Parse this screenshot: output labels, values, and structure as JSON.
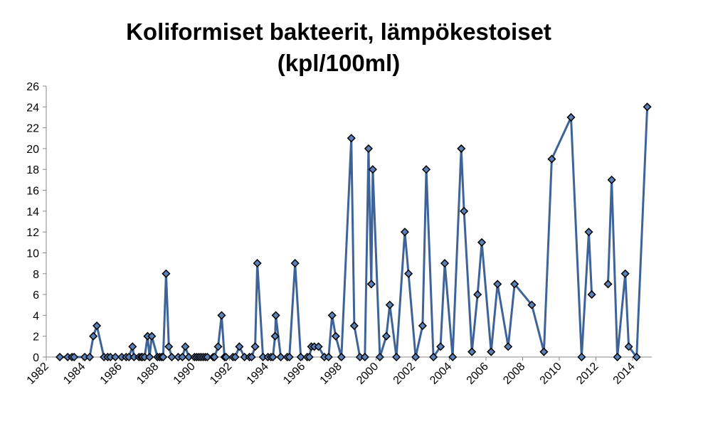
{
  "chart_data": {
    "type": "line",
    "title": [
      "Koliformiset bakteerit, lämpökestoiset",
      "(kpl/100ml)"
    ],
    "xlabel": "",
    "ylabel": "",
    "xlim": [
      1982,
      2015
    ],
    "ylim": [
      0,
      26
    ],
    "grid": false,
    "legend": "none",
    "x_ticks": [
      1982,
      1984,
      1986,
      1988,
      1990,
      1992,
      1994,
      1996,
      1998,
      2000,
      2002,
      2004,
      2006,
      2008,
      2010,
      2012,
      2014
    ],
    "y_ticks": [
      0,
      2,
      4,
      6,
      8,
      10,
      12,
      14,
      16,
      18,
      20,
      22,
      24,
      26
    ],
    "colors": {
      "line": "#3d6398",
      "marker_fill": "#5b82b8",
      "marker_edge": "#000000",
      "axis": "#888888"
    },
    "series": [
      {
        "name": "Koliformiset bakteerit",
        "points": [
          [
            1982.74,
            0
          ],
          [
            1983.17,
            0
          ],
          [
            1983.4,
            0
          ],
          [
            1983.52,
            0
          ],
          [
            1984.1,
            0
          ],
          [
            1984.37,
            0
          ],
          [
            1984.57,
            2
          ],
          [
            1984.76,
            3
          ],
          [
            1985.15,
            0
          ],
          [
            1985.35,
            0
          ],
          [
            1985.5,
            0
          ],
          [
            1985.77,
            0
          ],
          [
            1986.12,
            0
          ],
          [
            1986.36,
            0
          ],
          [
            1986.51,
            0
          ],
          [
            1986.71,
            1
          ],
          [
            1986.79,
            0
          ],
          [
            1987.06,
            0
          ],
          [
            1987.18,
            0
          ],
          [
            1987.25,
            0
          ],
          [
            1987.37,
            0
          ],
          [
            1987.53,
            2
          ],
          [
            1987.64,
            0
          ],
          [
            1987.76,
            2
          ],
          [
            1988.07,
            0
          ],
          [
            1988.19,
            0
          ],
          [
            1988.3,
            0
          ],
          [
            1988.38,
            0
          ],
          [
            1988.54,
            8
          ],
          [
            1988.69,
            1
          ],
          [
            1988.85,
            0
          ],
          [
            1989.2,
            0
          ],
          [
            1989.43,
            0
          ],
          [
            1989.59,
            1
          ],
          [
            1989.78,
            0
          ],
          [
            1990.09,
            0
          ],
          [
            1990.21,
            0
          ],
          [
            1990.33,
            0
          ],
          [
            1990.44,
            0
          ],
          [
            1990.56,
            0
          ],
          [
            1990.68,
            0
          ],
          [
            1990.79,
            0
          ],
          [
            1991.11,
            0
          ],
          [
            1991.18,
            0
          ],
          [
            1991.38,
            1
          ],
          [
            1991.57,
            4
          ],
          [
            1991.73,
            0
          ],
          [
            1991.81,
            0
          ],
          [
            1992.19,
            0
          ],
          [
            1992.31,
            0
          ],
          [
            1992.54,
            1
          ],
          [
            1992.82,
            0
          ],
          [
            1993.09,
            0
          ],
          [
            1993.21,
            0
          ],
          [
            1993.4,
            1
          ],
          [
            1993.52,
            9
          ],
          [
            1993.83,
            0
          ],
          [
            1994.1,
            0
          ],
          [
            1994.26,
            0
          ],
          [
            1994.37,
            0
          ],
          [
            1994.49,
            2
          ],
          [
            1994.53,
            4
          ],
          [
            1994.8,
            0
          ],
          [
            1995.15,
            0
          ],
          [
            1995.27,
            0
          ],
          [
            1995.58,
            9
          ],
          [
            1995.89,
            0
          ],
          [
            1996.24,
            0
          ],
          [
            1996.36,
            0
          ],
          [
            1996.47,
            1
          ],
          [
            1996.63,
            1
          ],
          [
            1996.86,
            1
          ],
          [
            1997.18,
            0
          ],
          [
            1997.41,
            0
          ],
          [
            1997.6,
            4
          ],
          [
            1997.8,
            2
          ],
          [
            1998.11,
            0
          ],
          [
            1998.65,
            21
          ],
          [
            1998.81,
            3
          ],
          [
            1999.12,
            0
          ],
          [
            1999.39,
            0
          ],
          [
            1999.59,
            20
          ],
          [
            1999.74,
            7
          ],
          [
            1999.82,
            18
          ],
          [
            2000.21,
            0
          ],
          [
            2000.56,
            2
          ],
          [
            2000.75,
            5
          ],
          [
            2001.11,
            0
          ],
          [
            2001.57,
            12
          ],
          [
            2001.77,
            8
          ],
          [
            2002.16,
            0
          ],
          [
            2002.54,
            3
          ],
          [
            2002.74,
            18
          ],
          [
            2003.13,
            0
          ],
          [
            2003.52,
            1
          ],
          [
            2003.75,
            9
          ],
          [
            2004.18,
            0
          ],
          [
            2004.65,
            20
          ],
          [
            2004.8,
            14
          ],
          [
            2005.23,
            0.5
          ],
          [
            2005.54,
            6
          ],
          [
            2005.77,
            11
          ],
          [
            2006.28,
            0.5
          ],
          [
            2006.63,
            7
          ],
          [
            2007.21,
            1
          ],
          [
            2007.56,
            7
          ],
          [
            2008.5,
            5
          ],
          [
            2009.16,
            0.5
          ],
          [
            2009.59,
            19
          ],
          [
            2010.64,
            23
          ],
          [
            2011.22,
            0
          ],
          [
            2011.61,
            12
          ],
          [
            2011.77,
            6
          ],
          [
            2012.2,
            null
          ],
          [
            2012.66,
            7
          ],
          [
            2012.86,
            17
          ],
          [
            2013.17,
            0
          ],
          [
            2013.6,
            8
          ],
          [
            2013.79,
            1
          ],
          [
            2014.22,
            0
          ],
          [
            2014.8,
            24
          ]
        ]
      }
    ]
  }
}
